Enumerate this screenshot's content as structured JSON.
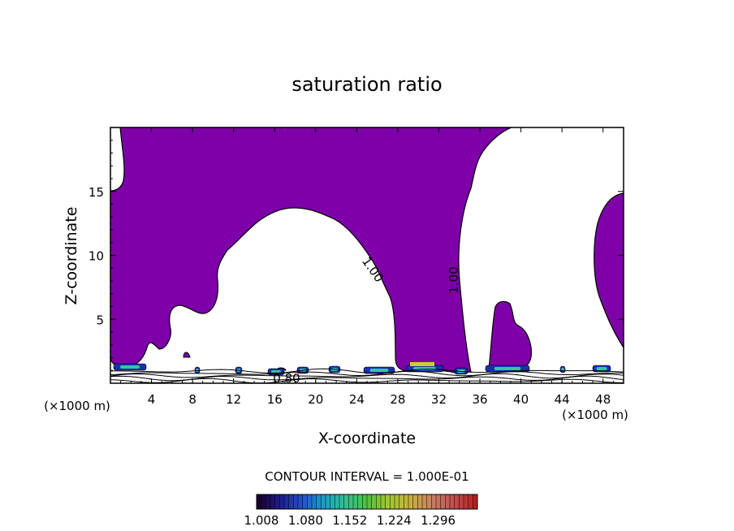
{
  "chart_data": {
    "type": "contour",
    "title": "saturation ratio",
    "xlabel": "X-coordinate",
    "ylabel": "Z-coordinate",
    "x_unit": "(×1000 m)",
    "x_unit_right": "(×1000 m)",
    "xlim": [
      0,
      50
    ],
    "ylim": [
      0,
      20
    ],
    "x_ticks": [
      4,
      8,
      12,
      16,
      20,
      24,
      28,
      32,
      36,
      40,
      44,
      48
    ],
    "y_ticks": [
      5,
      10,
      15
    ],
    "contour_interval_text": "CONTOUR INTERVAL = 1.000E-01",
    "contour_labels": [
      {
        "text": "1.00",
        "x": 25.0,
        "z": 9.0
      },
      {
        "text": "1.00",
        "x": 34.0,
        "z": 8.2
      },
      {
        "text": "0.80",
        "x": 17.2,
        "z": 0.3
      }
    ],
    "fill_color": "#7d00a8",
    "colorbar": {
      "tick_labels": [
        "1.008",
        "1.080",
        "1.152",
        "1.224",
        "1.296"
      ],
      "min": 1.008,
      "max": 1.296,
      "colors": [
        "#1a0033",
        "#1e1e8c",
        "#2350c8",
        "#1aa0c8",
        "#30c090",
        "#50c040",
        "#a0c830",
        "#c8b040",
        "#c88060",
        "#c05050",
        "#b82020"
      ]
    }
  }
}
